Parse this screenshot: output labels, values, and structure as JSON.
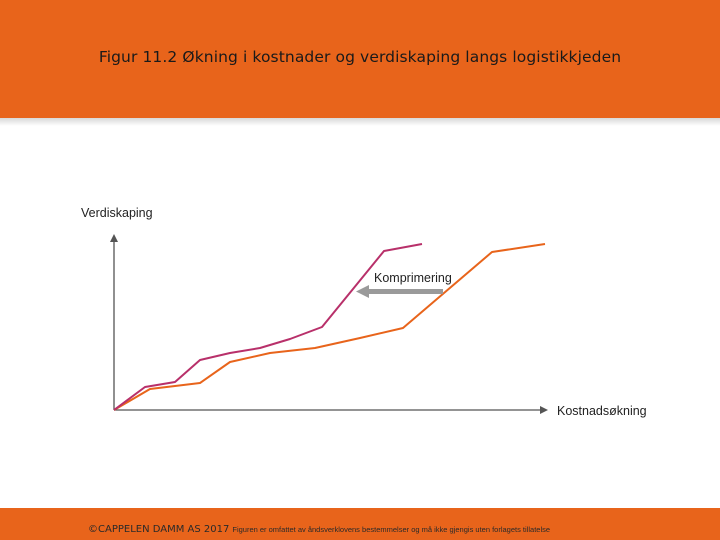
{
  "slide": {
    "title": "Figur 11.2  Økning i kostnader og verdiskaping langs logistikkjeden",
    "footer_copyright": "©CAPPELEN DAMM AS 2017",
    "footer_note": "Figuren er omfattet av åndsverklovens bestemmelser og må ikke gjengis uten forlagets tillatelse"
  },
  "colors": {
    "header": "#e8641b",
    "compressed_line": "#b8306a",
    "original_line": "#e8641b",
    "arrow": "#9a9a9a",
    "axis": "#555555"
  },
  "diagram": {
    "y_axis_label": "Verdiskaping",
    "x_axis_label": "Kostnadsøkning",
    "annotation_label": "Komprimering",
    "annotation_arrow_icon": "left-arrow-icon"
  }
}
